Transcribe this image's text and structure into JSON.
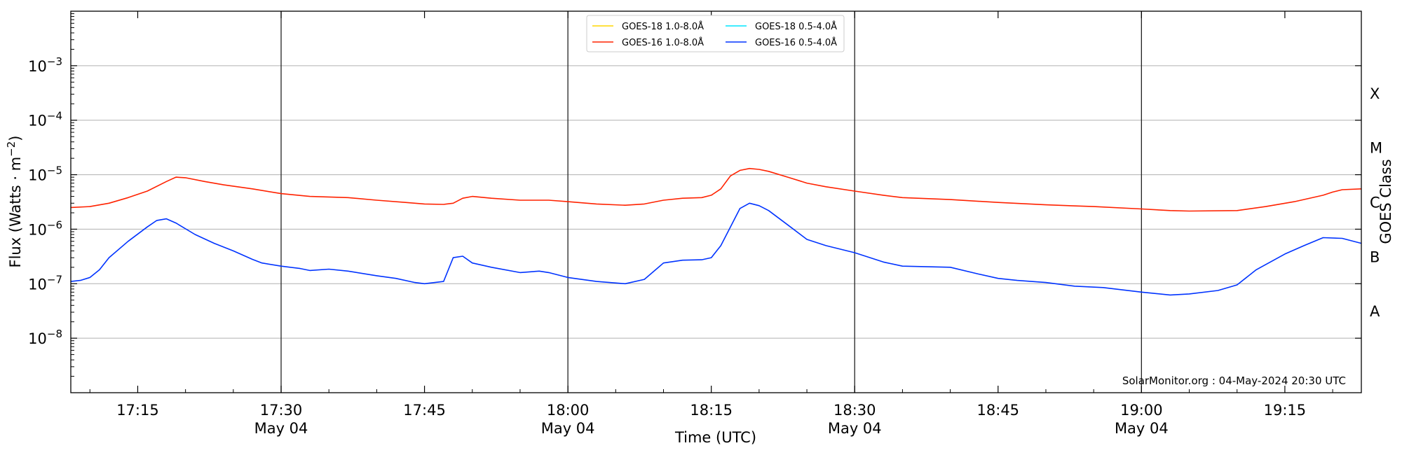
{
  "chart_data": {
    "type": "line",
    "ylabel": "Flux (Watts · m⁻²)",
    "xlabel": "Time (UTC)",
    "right_ylabel": "GOES Class",
    "yscale": "log",
    "ylim": [
      1e-09,
      0.01
    ],
    "xlim": [
      "17:08",
      "19:23"
    ],
    "yticks": [
      {
        "value": 1e-08,
        "base": "10",
        "exp": "−8"
      },
      {
        "value": 1e-07,
        "base": "10",
        "exp": "−7"
      },
      {
        "value": 1e-06,
        "base": "10",
        "exp": "−6"
      },
      {
        "value": 1e-05,
        "base": "10",
        "exp": "−5"
      },
      {
        "value": 0.0001,
        "base": "10",
        "exp": "−4"
      },
      {
        "value": 0.001,
        "base": "10",
        "exp": "−3"
      }
    ],
    "xticks": [
      {
        "time": "17:15",
        "label": "17:15",
        "sublabel": ""
      },
      {
        "time": "17:30",
        "label": "17:30",
        "sublabel": "May 04"
      },
      {
        "time": "17:45",
        "label": "17:45",
        "sublabel": ""
      },
      {
        "time": "18:00",
        "label": "18:00",
        "sublabel": "May 04"
      },
      {
        "time": "18:15",
        "label": "18:15",
        "sublabel": ""
      },
      {
        "time": "18:30",
        "label": "18:30",
        "sublabel": "May 04"
      },
      {
        "time": "18:45",
        "label": "18:45",
        "sublabel": ""
      },
      {
        "time": "19:00",
        "label": "19:00",
        "sublabel": "May 04"
      },
      {
        "time": "19:15",
        "label": "19:15",
        "sublabel": ""
      }
    ],
    "vlines": [
      "17:30",
      "18:00",
      "18:30",
      "19:00"
    ],
    "goes_classes": [
      {
        "label": "X",
        "flux": 0.000316
      },
      {
        "label": "M",
        "flux": 3.16e-05
      },
      {
        "label": "C",
        "flux": 3.16e-06
      },
      {
        "label": "B",
        "flux": 3.16e-07
      },
      {
        "label": "A",
        "flux": 3.16e-08
      }
    ],
    "grid": "horizontal",
    "legend": {
      "placement": "top-center",
      "columns": 2,
      "entries": [
        {
          "label": "GOES-18 1.0-8.0Å",
          "color": "#ffd700"
        },
        {
          "label": "GOES-16 1.0-8.0Å",
          "color": "#ff2200"
        },
        {
          "label": "GOES-18 0.5-4.0Å",
          "color": "#00e5ff"
        },
        {
          "label": "GOES-16 0.5-4.0Å",
          "color": "#0033ff"
        }
      ]
    },
    "credit": "SolarMonitor.org : 04-May-2024 20:30 UTC",
    "series": [
      {
        "name": "GOES-16 1.0-8.0Å",
        "color": "#ff2200",
        "points": [
          [
            "17:08",
            2.5e-06
          ],
          [
            "17:10",
            2.6e-06
          ],
          [
            "17:12",
            3e-06
          ],
          [
            "17:14",
            3.8e-06
          ],
          [
            "17:16",
            5e-06
          ],
          [
            "17:18",
            7.5e-06
          ],
          [
            "17:19",
            9e-06
          ],
          [
            "17:20",
            8.8e-06
          ],
          [
            "17:22",
            7.5e-06
          ],
          [
            "17:24",
            6.5e-06
          ],
          [
            "17:27",
            5.5e-06
          ],
          [
            "17:30",
            4.5e-06
          ],
          [
            "17:33",
            4e-06
          ],
          [
            "17:35",
            3.9e-06
          ],
          [
            "17:37",
            3.8e-06
          ],
          [
            "17:40",
            3.4e-06
          ],
          [
            "17:43",
            3.1e-06
          ],
          [
            "17:45",
            2.9e-06
          ],
          [
            "17:47",
            2.85e-06
          ],
          [
            "17:48",
            3e-06
          ],
          [
            "17:49",
            3.7e-06
          ],
          [
            "17:50",
            4e-06
          ],
          [
            "17:52",
            3.7e-06
          ],
          [
            "17:55",
            3.4e-06
          ],
          [
            "17:58",
            3.4e-06
          ],
          [
            "18:00",
            3.2e-06
          ],
          [
            "18:03",
            2.9e-06
          ],
          [
            "18:06",
            2.75e-06
          ],
          [
            "18:08",
            2.9e-06
          ],
          [
            "18:10",
            3.4e-06
          ],
          [
            "18:12",
            3.7e-06
          ],
          [
            "18:14",
            3.8e-06
          ],
          [
            "18:15",
            4.2e-06
          ],
          [
            "18:16",
            5.5e-06
          ],
          [
            "18:17",
            9.5e-06
          ],
          [
            "18:18",
            1.2e-05
          ],
          [
            "18:19",
            1.3e-05
          ],
          [
            "18:20",
            1.25e-05
          ],
          [
            "18:21",
            1.15e-05
          ],
          [
            "18:23",
            9e-06
          ],
          [
            "18:25",
            7e-06
          ],
          [
            "18:27",
            6e-06
          ],
          [
            "18:30",
            5e-06
          ],
          [
            "18:33",
            4.2e-06
          ],
          [
            "18:35",
            3.8e-06
          ],
          [
            "18:40",
            3.5e-06
          ],
          [
            "18:45",
            3.1e-06
          ],
          [
            "18:50",
            2.8e-06
          ],
          [
            "18:55",
            2.6e-06
          ],
          [
            "19:00",
            2.35e-06
          ],
          [
            "19:03",
            2.2e-06
          ],
          [
            "19:05",
            2.15e-06
          ],
          [
            "19:10",
            2.2e-06
          ],
          [
            "19:13",
            2.6e-06
          ],
          [
            "19:16",
            3.2e-06
          ],
          [
            "19:19",
            4.2e-06
          ],
          [
            "19:20",
            4.8e-06
          ],
          [
            "19:21",
            5.3e-06
          ],
          [
            "19:23",
            5.5e-06
          ]
        ]
      },
      {
        "name": "GOES-16 0.5-4.0Å",
        "color": "#0033ff",
        "points": [
          [
            "17:08",
            1.1e-07
          ],
          [
            "17:09",
            1.15e-07
          ],
          [
            "17:10",
            1.3e-07
          ],
          [
            "17:11",
            1.8e-07
          ],
          [
            "17:12",
            3e-07
          ],
          [
            "17:14",
            6e-07
          ],
          [
            "17:16",
            1.1e-06
          ],
          [
            "17:17",
            1.45e-06
          ],
          [
            "17:18",
            1.55e-06
          ],
          [
            "17:19",
            1.3e-06
          ],
          [
            "17:21",
            8e-07
          ],
          [
            "17:23",
            5.5e-07
          ],
          [
            "17:25",
            4e-07
          ],
          [
            "17:27",
            2.8e-07
          ],
          [
            "17:28",
            2.4e-07
          ],
          [
            "17:30",
            2.1e-07
          ],
          [
            "17:32",
            1.9e-07
          ],
          [
            "17:33",
            1.75e-07
          ],
          [
            "17:35",
            1.85e-07
          ],
          [
            "17:37",
            1.7e-07
          ],
          [
            "17:40",
            1.4e-07
          ],
          [
            "17:42",
            1.25e-07
          ],
          [
            "17:44",
            1.05e-07
          ],
          [
            "17:45",
            1e-07
          ],
          [
            "17:47",
            1.1e-07
          ],
          [
            "17:48",
            3e-07
          ],
          [
            "17:49",
            3.2e-07
          ],
          [
            "17:50",
            2.4e-07
          ],
          [
            "17:52",
            2e-07
          ],
          [
            "17:55",
            1.6e-07
          ],
          [
            "17:57",
            1.7e-07
          ],
          [
            "17:58",
            1.6e-07
          ],
          [
            "18:00",
            1.3e-07
          ],
          [
            "18:03",
            1.1e-07
          ],
          [
            "18:06",
            1e-07
          ],
          [
            "18:08",
            1.2e-07
          ],
          [
            "18:10",
            2.4e-07
          ],
          [
            "18:12",
            2.7e-07
          ],
          [
            "18:14",
            2.75e-07
          ],
          [
            "18:15",
            3e-07
          ],
          [
            "18:16",
            5e-07
          ],
          [
            "18:17",
            1.1e-06
          ],
          [
            "18:18",
            2.4e-06
          ],
          [
            "18:19",
            3e-06
          ],
          [
            "18:20",
            2.7e-06
          ],
          [
            "18:21",
            2.2e-06
          ],
          [
            "18:23",
            1.2e-06
          ],
          [
            "18:25",
            6.5e-07
          ],
          [
            "18:27",
            5e-07
          ],
          [
            "18:30",
            3.7e-07
          ],
          [
            "18:33",
            2.5e-07
          ],
          [
            "18:35",
            2.1e-07
          ],
          [
            "18:40",
            2e-07
          ],
          [
            "18:43",
            1.5e-07
          ],
          [
            "18:45",
            1.25e-07
          ],
          [
            "18:47",
            1.15e-07
          ],
          [
            "18:50",
            1.05e-07
          ],
          [
            "18:53",
            9e-08
          ],
          [
            "18:56",
            8.5e-08
          ],
          [
            "19:00",
            7e-08
          ],
          [
            "19:03",
            6.2e-08
          ],
          [
            "19:05",
            6.5e-08
          ],
          [
            "19:08",
            7.5e-08
          ],
          [
            "19:10",
            9.5e-08
          ],
          [
            "19:12",
            1.8e-07
          ],
          [
            "19:15",
            3.5e-07
          ],
          [
            "19:17",
            5e-07
          ],
          [
            "19:19",
            7e-07
          ],
          [
            "19:21",
            6.8e-07
          ],
          [
            "19:23",
            5.5e-07
          ]
        ]
      }
    ]
  }
}
